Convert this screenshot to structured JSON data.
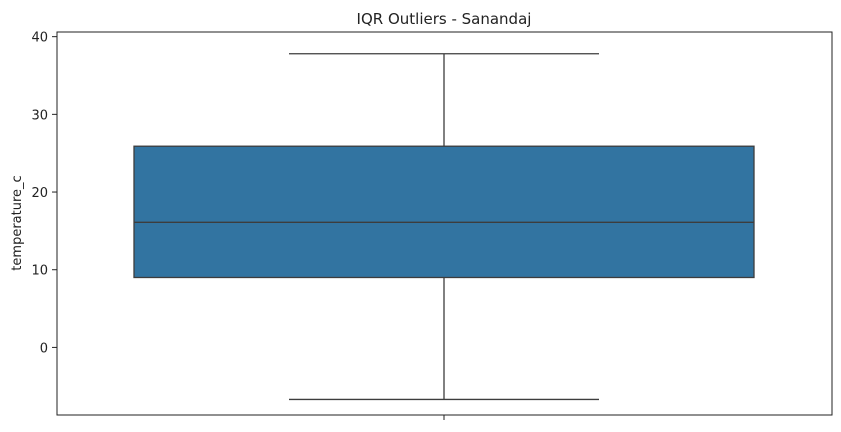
{
  "chart_data": {
    "type": "box",
    "title": "IQR Outliers - Sanandaj",
    "xlabel": "",
    "ylabel": "temperature_c",
    "ylim": [
      -8.7,
      40.6
    ],
    "yticks": [
      0,
      10,
      20,
      30,
      40
    ],
    "grid": false,
    "box": {
      "whisker_low": -6.7,
      "q1": 9.0,
      "median": 16.1,
      "q3": 25.9,
      "whisker_high": 37.8
    },
    "outliers": [],
    "colors": {
      "box_fill": "#3274a1",
      "line": "#3d3d3d",
      "axis": "#222222"
    }
  }
}
